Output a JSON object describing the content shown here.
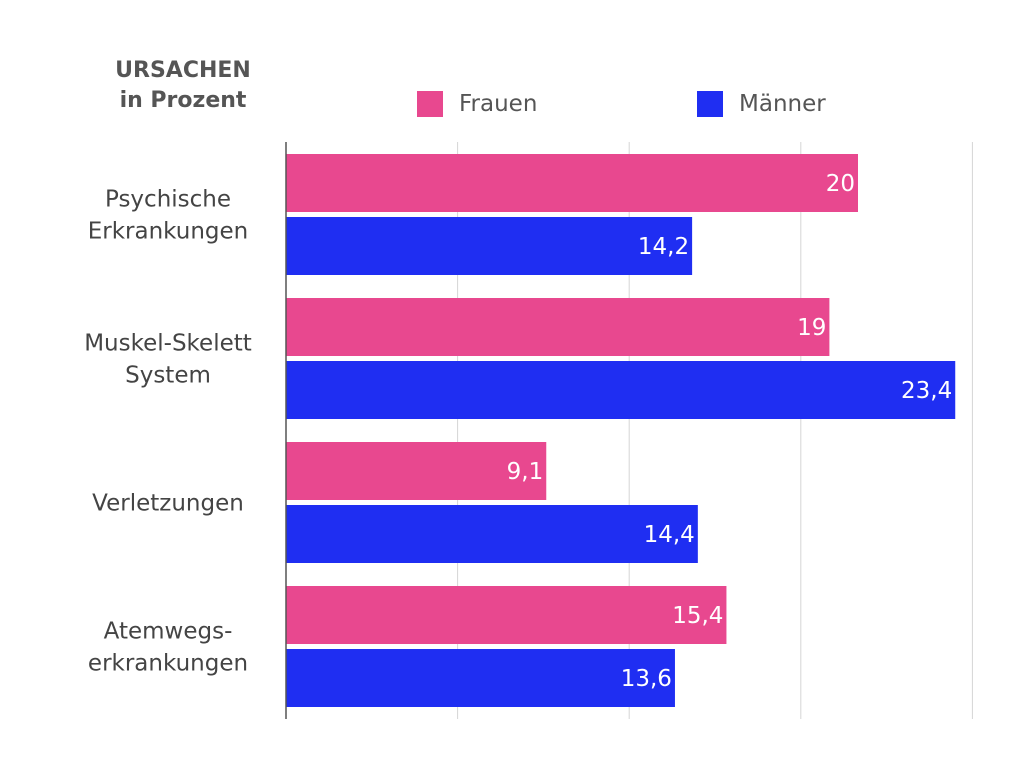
{
  "header": {
    "title_line1": "URSACHEN",
    "title_line2": "in Prozent"
  },
  "legend": {
    "frauen": "Frauen",
    "maenner": "Männer"
  },
  "colors": {
    "frauen": "#e8488f",
    "maenner": "#1f2ef2",
    "grid": "#d5d5d5",
    "axis": "#555555"
  },
  "chart_data": {
    "type": "bar",
    "orientation": "horizontal",
    "title": "URSACHEN in Prozent",
    "categories": [
      [
        "Psychische",
        "Erkrankungen"
      ],
      [
        "Muskel-Skelett",
        "System"
      ],
      [
        "Verletzungen"
      ],
      [
        "Atemwegs-",
        "erkrankungen"
      ]
    ],
    "series": [
      {
        "name": "Frauen",
        "values": [
          20,
          19,
          9.1,
          15.4
        ],
        "labels": [
          "20",
          "19",
          "9,1",
          "15,4"
        ]
      },
      {
        "name": "Männer",
        "values": [
          14.2,
          23.4,
          14.4,
          13.6
        ],
        "labels": [
          "14,2",
          "23,4",
          "14,4",
          "13,6"
        ]
      }
    ],
    "xlim": [
      0,
      24
    ],
    "grid": true,
    "legend_position": "top"
  }
}
